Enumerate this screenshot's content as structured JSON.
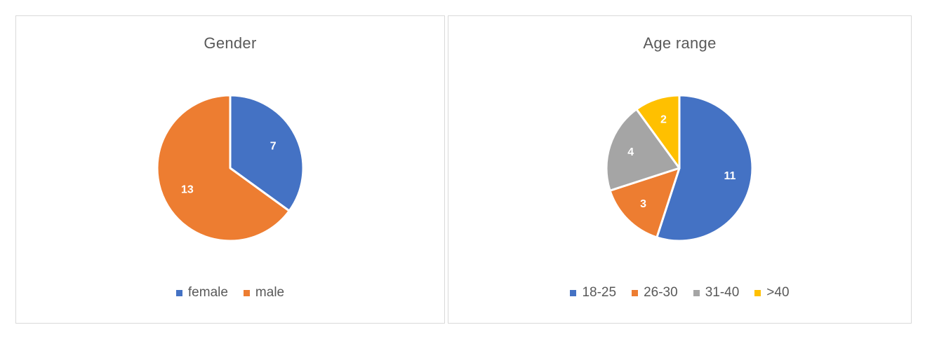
{
  "chart_data": [
    {
      "type": "pie",
      "title": "Gender",
      "categories": [
        "female",
        "male"
      ],
      "values": [
        7,
        13
      ],
      "colors": [
        "#4472C4",
        "#ED7D31"
      ],
      "legend": "bottom",
      "data_labels": true
    },
    {
      "type": "pie",
      "title": "Age range",
      "categories": [
        "18-25",
        "26-30",
        "31-40",
        ">40"
      ],
      "values": [
        11,
        3,
        4,
        2
      ],
      "colors": [
        "#4472C4",
        "#ED7D31",
        "#A5A5A5",
        "#FFC000"
      ],
      "legend": "bottom",
      "data_labels": true
    }
  ]
}
